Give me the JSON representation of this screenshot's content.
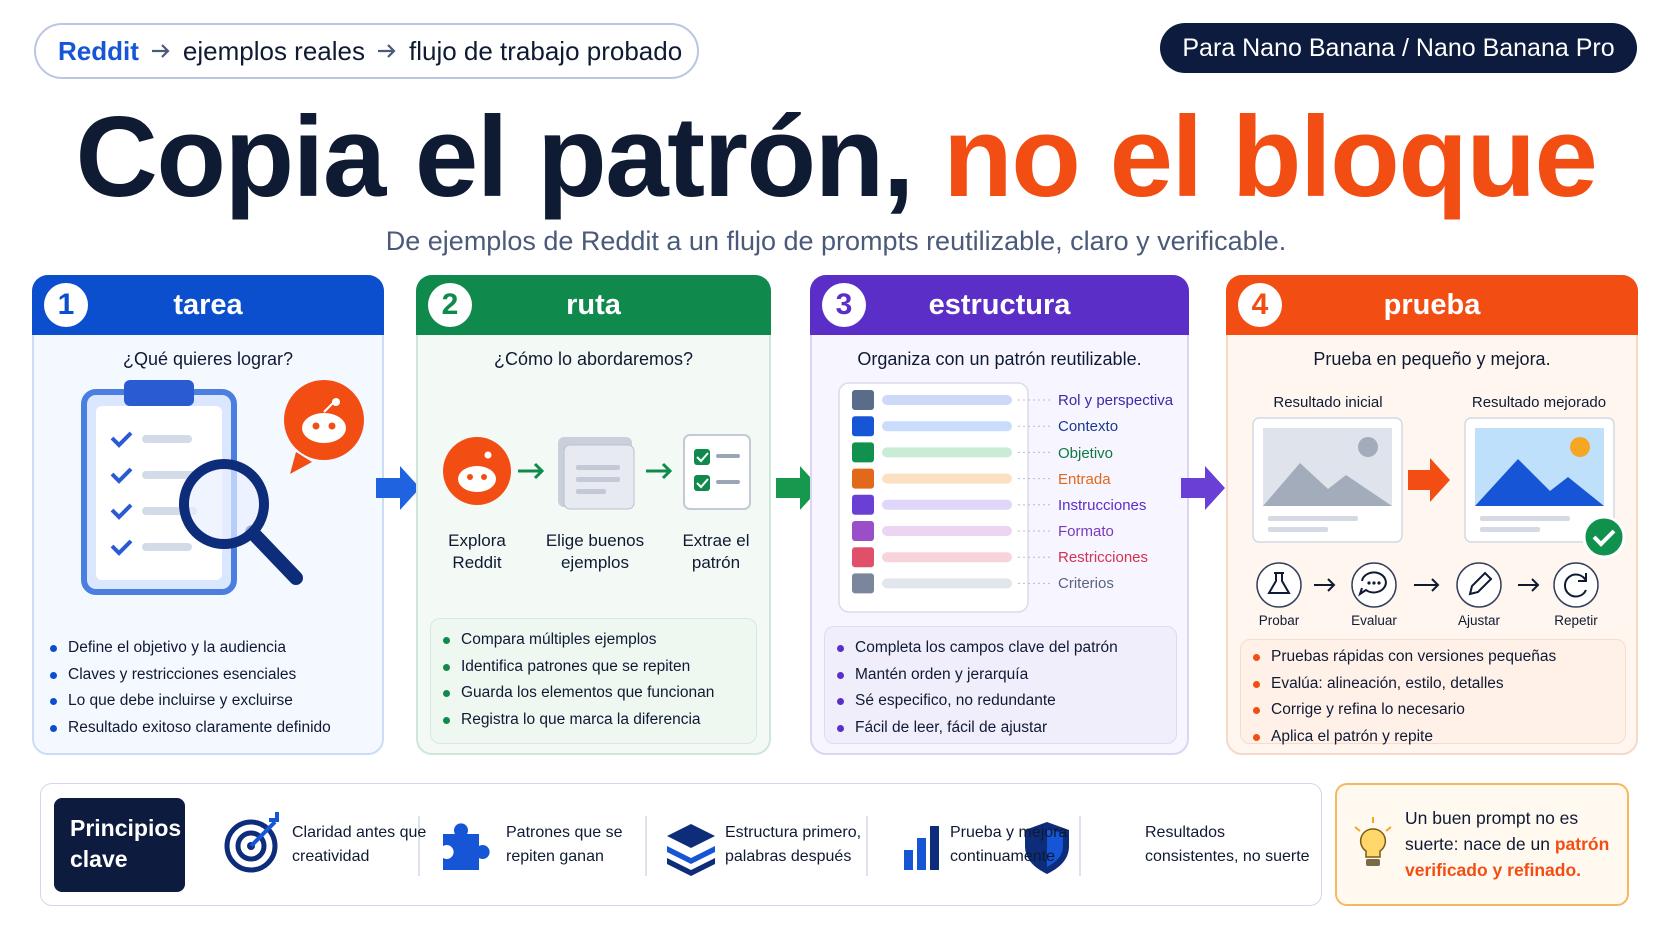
{
  "header": {
    "breadcrumb": [
      "Reddit",
      "ejemplos reales",
      "flujo de trabajo probado"
    ],
    "badge": "Para Nano Banana / Nano Banana Pro",
    "title_main": "Copia el patrón,",
    "title_accent": "no el bloque",
    "subtitle": "De ejemplos de Reddit a un flujo de prompts reutilizable, claro y verificable."
  },
  "steps": [
    {
      "number": "1",
      "title": "tarea",
      "question": "¿Qué quieres lograr?",
      "bullets": [
        "Define el objetivo y la audiencia",
        "Claves y restricciones esenciales",
        "Lo que debe incluirse y excluirse",
        "Resultado exitoso claramente definido"
      ]
    },
    {
      "number": "2",
      "title": "ruta",
      "question": "¿Cómo lo abordaremos?",
      "flow": [
        "Explora Reddit",
        "Elige buenos ejemplos",
        "Extrae el patrón"
      ],
      "bullets": [
        "Compara múltiples ejemplos",
        "Identifica patrones que se repiten",
        "Guarda los elementos que funcionan",
        "Registra lo que marca la diferencia"
      ]
    },
    {
      "number": "3",
      "title": "estructura",
      "question": "Organiza con un patrón reutilizable.",
      "fields": [
        "Rol y perspectiva",
        "Contexto",
        "Objetivo",
        "Entrada",
        "Instrucciones",
        "Formato",
        "Restricciones",
        "Criterios"
      ],
      "bullets": [
        "Completa los campos clave del patrón",
        "Mantén orden y jerarquía",
        "Sé especifico, no redundante",
        "Fácil de leer, fácil de ajustar"
      ]
    },
    {
      "number": "4",
      "title": "prueba",
      "question": "Prueba en pequeño y mejora.",
      "before": "Resultado inicial",
      "after": "Resultado mejorado",
      "cycle": [
        "Probar",
        "Evaluar",
        "Ajustar",
        "Repetir"
      ],
      "bullets": [
        "Pruebas rápidas con versiones pequeñas",
        "Evalúa: alineación, estilo, detalles",
        "Corrige y refina lo necesario",
        "Aplica el patrón y repite"
      ]
    }
  ],
  "principles": {
    "title": "Principios clave",
    "items": [
      "Claridad antes que creatividad",
      "Patrones que se repiten ganan",
      "Estructura primero, palabras después",
      "Prueba y mejora continuamente",
      "Resultados consistentes, no suerte"
    ]
  },
  "tip": {
    "text": "Un buen prompt no es suerte: nace de un",
    "highlight": "patrón verificado y refinado."
  }
}
